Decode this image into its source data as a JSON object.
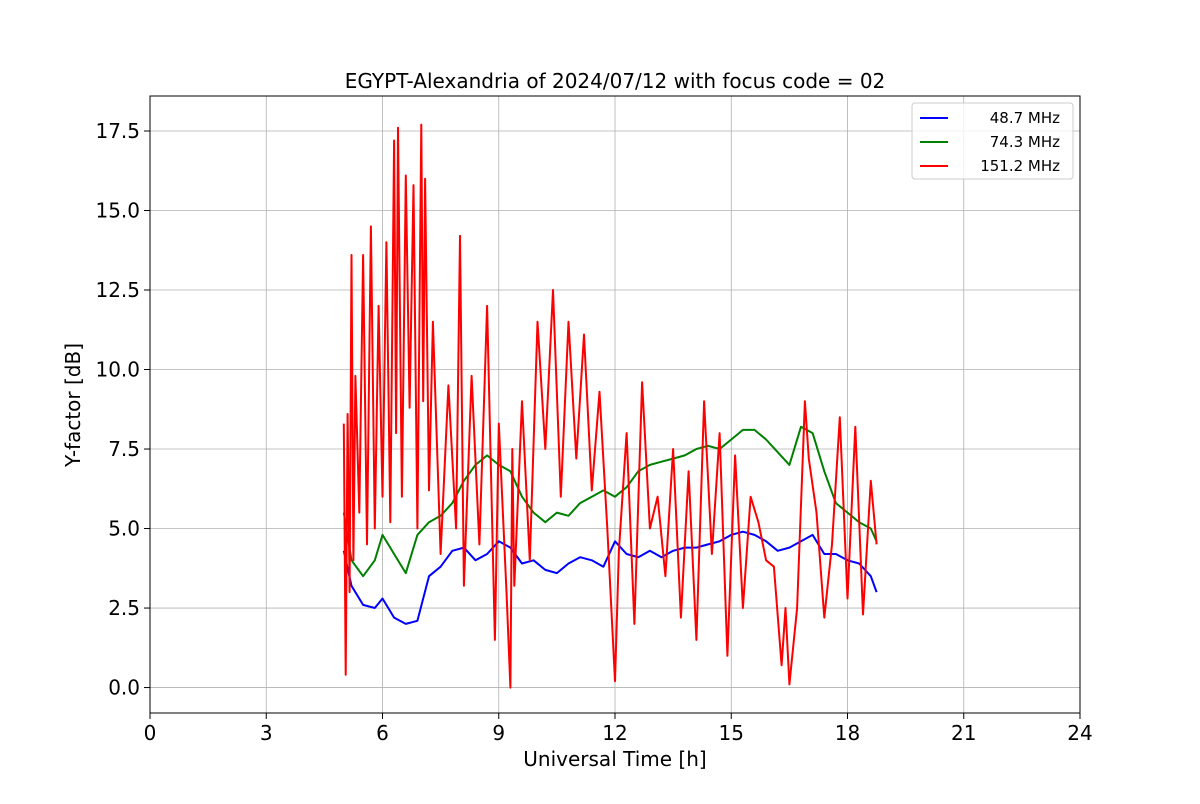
{
  "chart_data": {
    "type": "line",
    "title": "EGYPT-Alexandria of 2024/07/12 with focus code = 02",
    "xlabel": "Universal Time [h]",
    "ylabel": "Y-factor [dB]",
    "xlim": [
      0,
      24
    ],
    "ylim": [
      -0.8,
      18.6
    ],
    "x_ticks": [
      0,
      3,
      6,
      9,
      12,
      15,
      18,
      21,
      24
    ],
    "x_tick_labels": [
      "0",
      "3",
      "6",
      "9",
      "12",
      "15",
      "18",
      "21",
      "24"
    ],
    "y_ticks": [
      0,
      2.5,
      5,
      7.5,
      10,
      12.5,
      15,
      17.5
    ],
    "y_tick_labels": [
      "0.0",
      "2.5",
      "5.0",
      "7.5",
      "10.0",
      "12.5",
      "15.0",
      "17.5"
    ],
    "grid": true,
    "legend_position": "top-right",
    "series": [
      {
        "name": "48.7 MHz",
        "color": "#0000ff",
        "x": [
          5.0,
          5.2,
          5.5,
          5.8,
          6.0,
          6.3,
          6.6,
          6.9,
          7.2,
          7.5,
          7.8,
          8.1,
          8.4,
          8.7,
          9.0,
          9.3,
          9.6,
          9.9,
          10.2,
          10.5,
          10.8,
          11.1,
          11.4,
          11.7,
          12.0,
          12.3,
          12.6,
          12.9,
          13.2,
          13.5,
          13.8,
          14.1,
          14.4,
          14.7,
          15.0,
          15.3,
          15.6,
          15.9,
          16.2,
          16.5,
          16.8,
          17.1,
          17.4,
          17.7,
          18.0,
          18.3,
          18.6,
          18.75
        ],
        "y": [
          4.3,
          3.2,
          2.6,
          2.5,
          2.8,
          2.2,
          2.0,
          2.1,
          3.5,
          3.8,
          4.3,
          4.4,
          4.0,
          4.2,
          4.6,
          4.4,
          3.9,
          4.0,
          3.7,
          3.6,
          3.9,
          4.1,
          4.0,
          3.8,
          4.6,
          4.2,
          4.1,
          4.3,
          4.1,
          4.3,
          4.4,
          4.4,
          4.5,
          4.6,
          4.8,
          4.9,
          4.8,
          4.6,
          4.3,
          4.4,
          4.6,
          4.8,
          4.2,
          4.2,
          4.0,
          3.9,
          3.5,
          3.0
        ]
      },
      {
        "name": "74.3 MHz",
        "color": "#008000",
        "x": [
          5.0,
          5.2,
          5.5,
          5.8,
          6.0,
          6.3,
          6.6,
          6.9,
          7.2,
          7.5,
          7.8,
          8.1,
          8.4,
          8.7,
          9.0,
          9.3,
          9.6,
          9.9,
          10.2,
          10.5,
          10.8,
          11.1,
          11.4,
          11.7,
          12.0,
          12.3,
          12.6,
          12.9,
          13.2,
          13.5,
          13.8,
          14.1,
          14.4,
          14.7,
          15.0,
          15.3,
          15.6,
          15.9,
          16.2,
          16.5,
          16.8,
          17.1,
          17.4,
          17.7,
          18.0,
          18.3,
          18.6,
          18.75
        ],
        "y": [
          5.5,
          4.0,
          3.5,
          4.0,
          4.8,
          4.2,
          3.6,
          4.8,
          5.2,
          5.4,
          5.8,
          6.5,
          7.0,
          7.3,
          7.0,
          6.8,
          6.0,
          5.5,
          5.2,
          5.5,
          5.4,
          5.8,
          6.0,
          6.2,
          6.0,
          6.3,
          6.8,
          7.0,
          7.1,
          7.2,
          7.3,
          7.5,
          7.6,
          7.5,
          7.8,
          8.1,
          8.1,
          7.8,
          7.4,
          7.0,
          8.2,
          8.0,
          6.8,
          5.8,
          5.5,
          5.2,
          5.0,
          4.6
        ]
      },
      {
        "name": "151.2 MHz",
        "color": "#ff0000",
        "x": [
          5.0,
          5.05,
          5.1,
          5.15,
          5.2,
          5.25,
          5.3,
          5.4,
          5.5,
          5.6,
          5.7,
          5.8,
          5.9,
          6.0,
          6.1,
          6.2,
          6.3,
          6.35,
          6.4,
          6.5,
          6.6,
          6.7,
          6.8,
          6.9,
          7.0,
          7.05,
          7.1,
          7.2,
          7.3,
          7.5,
          7.7,
          7.9,
          8.0,
          8.1,
          8.3,
          8.5,
          8.7,
          8.9,
          9.0,
          9.2,
          9.3,
          9.35,
          9.4,
          9.6,
          9.8,
          10.0,
          10.2,
          10.4,
          10.6,
          10.8,
          11.0,
          11.2,
          11.4,
          11.6,
          11.8,
          12.0,
          12.1,
          12.3,
          12.5,
          12.7,
          12.9,
          13.1,
          13.3,
          13.5,
          13.7,
          13.9,
          14.1,
          14.3,
          14.5,
          14.7,
          14.9,
          15.1,
          15.3,
          15.5,
          15.7,
          15.9,
          16.1,
          16.3,
          16.4,
          16.5,
          16.7,
          16.9,
          17.0,
          17.2,
          17.4,
          17.6,
          17.8,
          18.0,
          18.2,
          18.4,
          18.6,
          18.75
        ],
        "y": [
          8.3,
          0.4,
          8.6,
          3.0,
          13.6,
          4.0,
          9.8,
          5.5,
          13.6,
          4.5,
          14.5,
          5.0,
          12.0,
          6.0,
          14.0,
          5.2,
          17.2,
          8.0,
          17.6,
          6.0,
          16.1,
          8.8,
          15.8,
          5.0,
          17.7,
          9.0,
          16.0,
          6.2,
          11.5,
          4.2,
          9.5,
          5.0,
          14.2,
          3.2,
          9.8,
          4.5,
          12.0,
          1.5,
          8.3,
          3.0,
          0.0,
          7.5,
          3.2,
          9.0,
          4.0,
          11.5,
          7.5,
          12.5,
          6.0,
          11.5,
          7.2,
          11.1,
          6.2,
          9.3,
          5.0,
          0.2,
          4.3,
          8.0,
          2.0,
          9.6,
          5.0,
          6.0,
          3.5,
          7.5,
          2.2,
          6.8,
          1.5,
          9.0,
          4.2,
          8.0,
          1.0,
          7.3,
          2.5,
          6.0,
          5.2,
          4.0,
          3.8,
          0.7,
          2.5,
          0.1,
          2.5,
          9.0,
          7.2,
          5.5,
          2.2,
          4.5,
          8.5,
          2.8,
          8.2,
          2.3,
          6.5,
          4.5
        ]
      }
    ]
  }
}
